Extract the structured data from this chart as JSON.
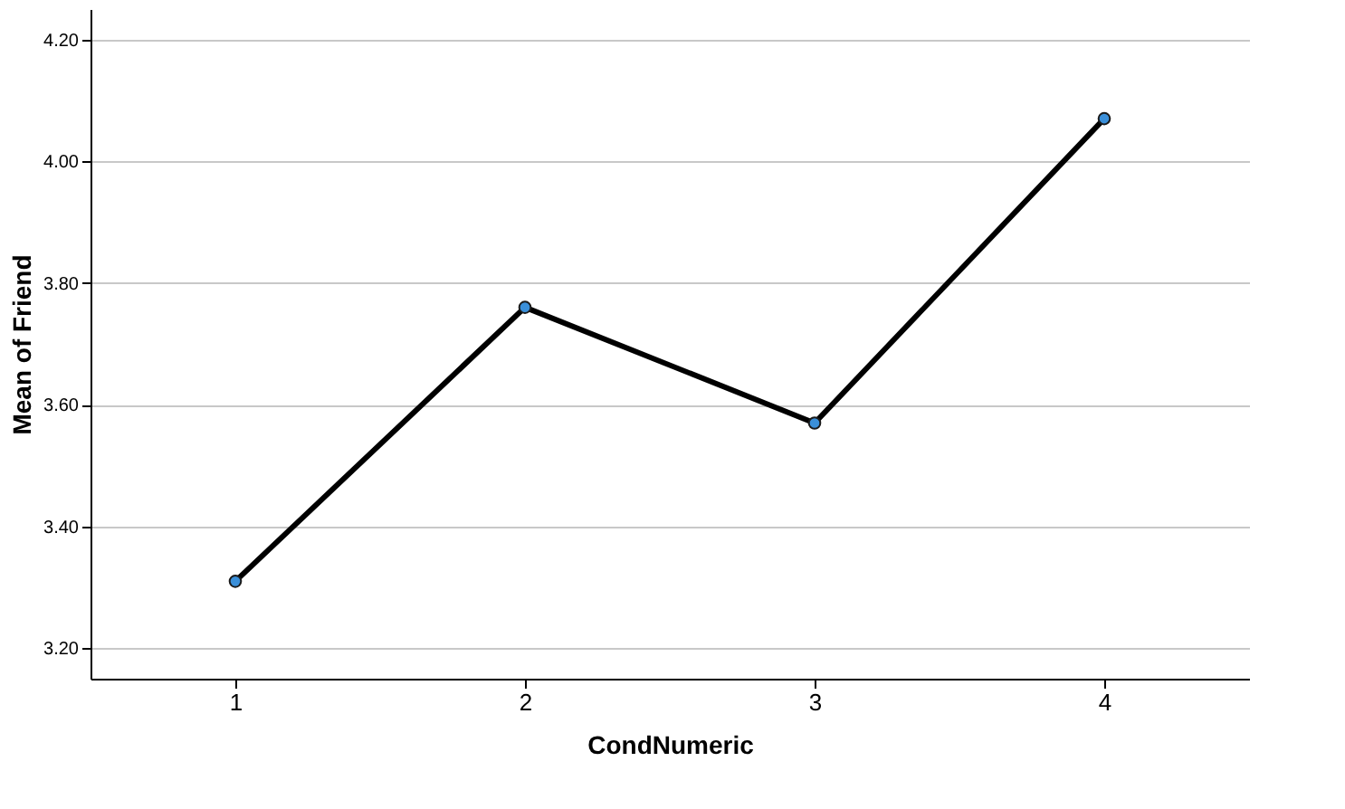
{
  "chart_data": {
    "type": "line",
    "xlabel": "CondNumeric",
    "ylabel": "Mean of Friend",
    "categories": [
      "1",
      "2",
      "3",
      "4"
    ],
    "series": [
      {
        "color": "#000000",
        "colors": [
          "#3a8fd9",
          "#3a8fd9",
          "#3a8fd9",
          "#3a8fd9"
        ],
        "values": [
          3.31,
          3.76,
          3.57,
          4.07
        ]
      }
    ],
    "ylim": [
      3.15,
      4.25
    ],
    "yticks": [
      {
        "value": 3.2,
        "label": "3.20"
      },
      {
        "value": 3.4,
        "label": "3.40"
      },
      {
        "value": 3.6,
        "label": "3.60"
      },
      {
        "value": 3.8,
        "label": "3.80"
      },
      {
        "value": 4.0,
        "label": "4.00"
      },
      {
        "value": 4.2,
        "label": "4.20"
      }
    ],
    "grid": "y",
    "marker": "circle",
    "line_style": "solid"
  }
}
